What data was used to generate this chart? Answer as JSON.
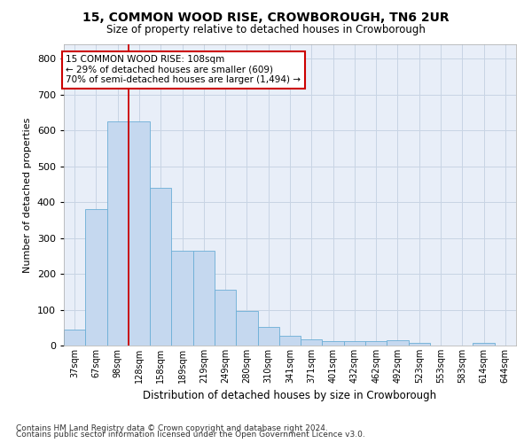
{
  "title": "15, COMMON WOOD RISE, CROWBOROUGH, TN6 2UR",
  "subtitle": "Size of property relative to detached houses in Crowborough",
  "xlabel": "Distribution of detached houses by size in Crowborough",
  "ylabel": "Number of detached properties",
  "footnote1": "Contains HM Land Registry data © Crown copyright and database right 2024.",
  "footnote2": "Contains public sector information licensed under the Open Government Licence v3.0.",
  "bar_labels": [
    "37sqm",
    "67sqm",
    "98sqm",
    "128sqm",
    "158sqm",
    "189sqm",
    "219sqm",
    "249sqm",
    "280sqm",
    "310sqm",
    "341sqm",
    "371sqm",
    "401sqm",
    "432sqm",
    "462sqm",
    "492sqm",
    "523sqm",
    "553sqm",
    "583sqm",
    "614sqm",
    "644sqm"
  ],
  "bar_values": [
    45,
    380,
    625,
    625,
    440,
    265,
    265,
    155,
    97,
    52,
    28,
    17,
    12,
    12,
    12,
    15,
    8,
    0,
    0,
    8,
    0
  ],
  "bar_color": "#c5d8ef",
  "bar_edge_color": "#6baed6",
  "grid_color": "#c8d4e4",
  "background_color": "#e8eef8",
  "red_line_index": 2.5,
  "annotation_text": "15 COMMON WOOD RISE: 108sqm\n← 29% of detached houses are smaller (609)\n70% of semi-detached houses are larger (1,494) →",
  "annotation_box_color": "#ffffff",
  "annotation_box_edge": "#cc0000",
  "ylim": [
    0,
    840
  ],
  "yticks": [
    0,
    100,
    200,
    300,
    400,
    500,
    600,
    700,
    800
  ]
}
